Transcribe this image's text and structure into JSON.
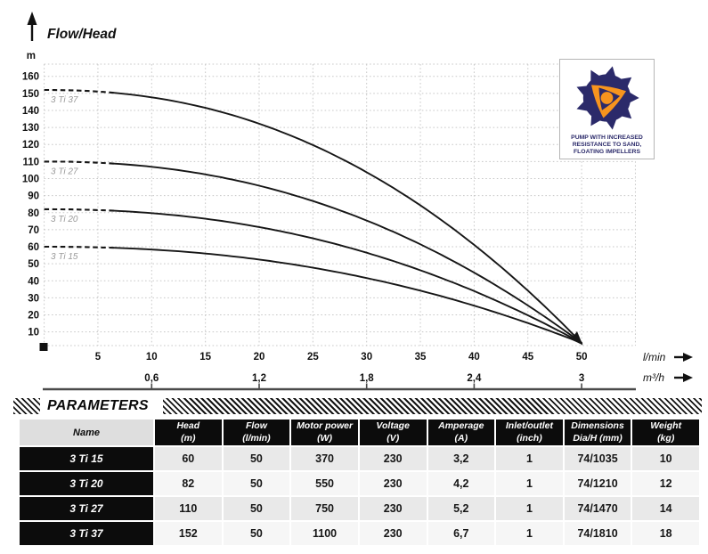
{
  "chart": {
    "title": "Flow/Head",
    "y_axis_unit": "m",
    "x_axis_unit_primary": "l/min",
    "x_axis_unit_secondary": "m³/h",
    "y_ticks": [
      10,
      20,
      30,
      40,
      50,
      60,
      70,
      80,
      90,
      100,
      110,
      120,
      130,
      140,
      150,
      160
    ],
    "x_ticks_lmin": [
      5,
      10,
      15,
      20,
      25,
      30,
      35,
      40,
      45,
      50
    ],
    "x_ticks_m3h": [
      {
        "label": "0,6",
        "at_lmin": 10
      },
      {
        "label": "1,2",
        "at_lmin": 20
      },
      {
        "label": "1,8",
        "at_lmin": 30
      },
      {
        "label": "2,4",
        "at_lmin": 40
      },
      {
        "label": "3",
        "at_lmin": 50
      }
    ]
  },
  "chart_data": {
    "type": "line",
    "title": "Flow/Head",
    "xlabel": "Flow (l/min)",
    "ylabel": "Head (m)",
    "xlim": [
      0,
      55
    ],
    "ylim": [
      0,
      170
    ],
    "grid": "dotted",
    "x_secondary_axis_unit": "m³/h",
    "legend_position": "curve-start-labels",
    "series": [
      {
        "name": "3 Ti 37",
        "shutoff_head_m": 152,
        "points_lmin_m": [
          [
            0,
            152
          ],
          [
            10,
            148
          ],
          [
            20,
            132
          ],
          [
            30,
            104
          ],
          [
            40,
            61
          ],
          [
            50,
            4
          ]
        ]
      },
      {
        "name": "3 Ti 27",
        "shutoff_head_m": 110,
        "points_lmin_m": [
          [
            0,
            110
          ],
          [
            10,
            107
          ],
          [
            20,
            96
          ],
          [
            30,
            75
          ],
          [
            40,
            45
          ],
          [
            50,
            4
          ]
        ]
      },
      {
        "name": "3 Ti 20",
        "shutoff_head_m": 82,
        "points_lmin_m": [
          [
            0,
            82
          ],
          [
            10,
            80
          ],
          [
            20,
            72
          ],
          [
            30,
            56
          ],
          [
            40,
            34
          ],
          [
            50,
            4
          ]
        ]
      },
      {
        "name": "3 Ti 15",
        "shutoff_head_m": 60,
        "points_lmin_m": [
          [
            0,
            60
          ],
          [
            10,
            58
          ],
          [
            20,
            52
          ],
          [
            30,
            42
          ],
          [
            40,
            25
          ],
          [
            50,
            4
          ]
        ]
      }
    ]
  },
  "badge": {
    "caption": "PUMP WITH INCREASED RESISTANCE TO SAND, FLOATING IMPELLERS"
  },
  "parameters": {
    "title": "PARAMETERS",
    "columns": [
      {
        "label": "Name",
        "unit": ""
      },
      {
        "label": "Head",
        "unit": "(m)"
      },
      {
        "label": "Flow",
        "unit": "(l/min)"
      },
      {
        "label": "Motor power",
        "unit": "(W)"
      },
      {
        "label": "Voltage",
        "unit": "(V)"
      },
      {
        "label": "Amperage",
        "unit": "(A)"
      },
      {
        "label": "Inlet/outlet",
        "unit": "(inch)"
      },
      {
        "label": "Dimensions",
        "unit": "Dia/H (mm)"
      },
      {
        "label": "Weight",
        "unit": "(kg)"
      }
    ],
    "rows": [
      {
        "name": "3 Ti 15",
        "values": [
          "60",
          "50",
          "370",
          "230",
          "3,2",
          "1",
          "74/1035",
          "10"
        ]
      },
      {
        "name": "3 Ti 20",
        "values": [
          "82",
          "50",
          "550",
          "230",
          "4,2",
          "1",
          "74/1210",
          "12"
        ]
      },
      {
        "name": "3 Ti 27",
        "values": [
          "110",
          "50",
          "750",
          "230",
          "5,2",
          "1",
          "74/1470",
          "14"
        ]
      },
      {
        "name": "3 Ti 37",
        "values": [
          "152",
          "50",
          "1100",
          "230",
          "6,7",
          "1",
          "74/1810",
          "18"
        ]
      }
    ]
  },
  "colors": {
    "navy": "#2b2a6a",
    "orange": "#f7941e",
    "curve": "#161616",
    "grid": "#c8c8c8",
    "series_label_gray": "#9a9a9a",
    "axis_line": "#4a4a4a"
  }
}
